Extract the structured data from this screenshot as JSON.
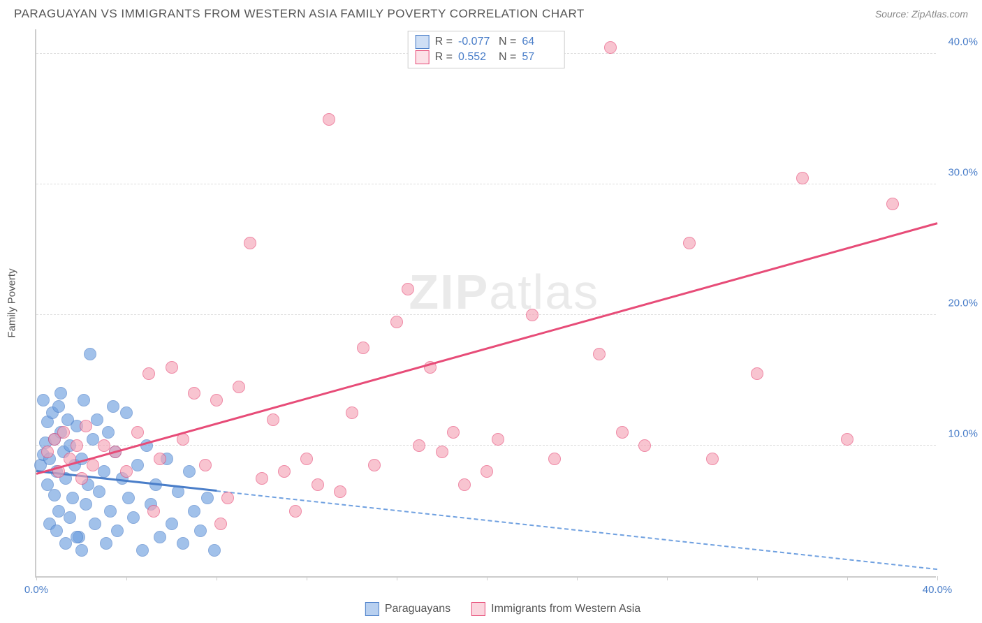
{
  "title": "PARAGUAYAN VS IMMIGRANTS FROM WESTERN ASIA FAMILY POVERTY CORRELATION CHART",
  "source": "Source: ZipAtlas.com",
  "watermark": {
    "bold": "ZIP",
    "light": "atlas"
  },
  "chart": {
    "type": "scatter",
    "y_label": "Family Poverty",
    "background_color": "#ffffff",
    "grid_color": "#dddddd",
    "axis_color": "#cccccc",
    "tick_label_color": "#4a7ec9",
    "label_color": "#555555",
    "title_fontsize": 17,
    "tick_fontsize": 15,
    "label_fontsize": 15,
    "xlim": [
      0,
      40
    ],
    "ylim": [
      0,
      42
    ],
    "y_ticks": [
      {
        "value": 10,
        "label": "10.0%"
      },
      {
        "value": 20,
        "label": "20.0%"
      },
      {
        "value": 30,
        "label": "30.0%"
      },
      {
        "value": 40,
        "label": "40.0%"
      }
    ],
    "x_ticks": [
      0,
      4,
      8,
      12,
      16,
      20,
      24,
      28,
      32,
      36,
      40
    ],
    "x_tick_labels": [
      {
        "value": 0,
        "label": "0.0%"
      },
      {
        "value": 40,
        "label": "40.0%"
      }
    ],
    "marker_radius": 9,
    "marker_stroke_width": 1.2,
    "marker_fill_opacity": 0.35,
    "line_width": 2.5,
    "series": [
      {
        "name": "Paraguayans",
        "color": "#6fa0e0",
        "stroke": "#4a7ec9",
        "r_value": "-0.077",
        "n_value": "64",
        "trend": {
          "x1": 0,
          "y1": 8.0,
          "x2": 8,
          "y2": 6.5,
          "solid": true
        },
        "trend_ext": {
          "x1": 8,
          "y1": 6.5,
          "x2": 40,
          "y2": 0.5,
          "dashed": true,
          "color": "#6fa0e0"
        },
        "points": [
          [
            0.2,
            8.5
          ],
          [
            0.3,
            9.3
          ],
          [
            0.4,
            10.2
          ],
          [
            0.5,
            11.8
          ],
          [
            0.5,
            7.0
          ],
          [
            0.6,
            9.0
          ],
          [
            0.7,
            12.5
          ],
          [
            0.8,
            6.2
          ],
          [
            0.8,
            10.5
          ],
          [
            0.9,
            8.0
          ],
          [
            1.0,
            13.0
          ],
          [
            1.0,
            5.0
          ],
          [
            1.1,
            11.0
          ],
          [
            1.2,
            9.5
          ],
          [
            1.3,
            7.5
          ],
          [
            1.4,
            12.0
          ],
          [
            1.5,
            4.5
          ],
          [
            1.5,
            10.0
          ],
          [
            1.6,
            6.0
          ],
          [
            1.7,
            8.5
          ],
          [
            1.8,
            11.5
          ],
          [
            1.9,
            3.0
          ],
          [
            2.0,
            9.0
          ],
          [
            2.1,
            13.5
          ],
          [
            2.2,
            5.5
          ],
          [
            2.3,
            7.0
          ],
          [
            2.5,
            10.5
          ],
          [
            2.6,
            4.0
          ],
          [
            2.7,
            12.0
          ],
          [
            2.8,
            6.5
          ],
          [
            3.0,
            8.0
          ],
          [
            3.1,
            2.5
          ],
          [
            3.2,
            11.0
          ],
          [
            3.3,
            5.0
          ],
          [
            3.5,
            9.5
          ],
          [
            3.6,
            3.5
          ],
          [
            3.8,
            7.5
          ],
          [
            4.0,
            12.5
          ],
          [
            4.1,
            6.0
          ],
          [
            4.3,
            4.5
          ],
          [
            4.5,
            8.5
          ],
          [
            4.7,
            2.0
          ],
          [
            4.9,
            10.0
          ],
          [
            5.1,
            5.5
          ],
          [
            5.3,
            7.0
          ],
          [
            5.5,
            3.0
          ],
          [
            5.8,
            9.0
          ],
          [
            6.0,
            4.0
          ],
          [
            6.3,
            6.5
          ],
          [
            6.5,
            2.5
          ],
          [
            6.8,
            8.0
          ],
          [
            7.0,
            5.0
          ],
          [
            7.3,
            3.5
          ],
          [
            7.6,
            6.0
          ],
          [
            7.9,
            2.0
          ],
          [
            2.4,
            17.0
          ],
          [
            3.4,
            13.0
          ],
          [
            0.3,
            13.5
          ],
          [
            1.1,
            14.0
          ],
          [
            0.6,
            4.0
          ],
          [
            1.3,
            2.5
          ],
          [
            1.8,
            3.0
          ],
          [
            2.0,
            2.0
          ],
          [
            0.9,
            3.5
          ]
        ]
      },
      {
        "name": "Immigrants from Western Asia",
        "color": "#f5a5b8",
        "stroke": "#e74c78",
        "r_value": "0.552",
        "n_value": "57",
        "trend": {
          "x1": 0,
          "y1": 7.8,
          "x2": 40,
          "y2": 27.0,
          "solid": true
        },
        "points": [
          [
            0.5,
            9.5
          ],
          [
            0.8,
            10.5
          ],
          [
            1.0,
            8.0
          ],
          [
            1.2,
            11.0
          ],
          [
            1.5,
            9.0
          ],
          [
            1.8,
            10.0
          ],
          [
            2.0,
            7.5
          ],
          [
            2.2,
            11.5
          ],
          [
            2.5,
            8.5
          ],
          [
            3.0,
            10.0
          ],
          [
            3.5,
            9.5
          ],
          [
            4.0,
            8.0
          ],
          [
            4.5,
            11.0
          ],
          [
            5.0,
            15.5
          ],
          [
            5.5,
            9.0
          ],
          [
            6.0,
            16.0
          ],
          [
            6.5,
            10.5
          ],
          [
            7.0,
            14.0
          ],
          [
            7.5,
            8.5
          ],
          [
            8.0,
            13.5
          ],
          [
            8.5,
            6.0
          ],
          [
            9.0,
            14.5
          ],
          [
            9.5,
            25.5
          ],
          [
            10.0,
            7.5
          ],
          [
            10.5,
            12.0
          ],
          [
            11.0,
            8.0
          ],
          [
            11.5,
            5.0
          ],
          [
            12.0,
            9.0
          ],
          [
            12.5,
            7.0
          ],
          [
            13.0,
            35.0
          ],
          [
            13.5,
            6.5
          ],
          [
            14.0,
            12.5
          ],
          [
            14.5,
            17.5
          ],
          [
            15.0,
            8.5
          ],
          [
            16.0,
            19.5
          ],
          [
            16.5,
            22.0
          ],
          [
            17.0,
            10.0
          ],
          [
            17.5,
            16.0
          ],
          [
            18.0,
            9.5
          ],
          [
            18.5,
            11.0
          ],
          [
            19.0,
            7.0
          ],
          [
            20.0,
            8.0
          ],
          [
            20.5,
            10.5
          ],
          [
            22.0,
            20.0
          ],
          [
            23.0,
            9.0
          ],
          [
            25.0,
            17.0
          ],
          [
            26.0,
            11.0
          ],
          [
            27.0,
            10.0
          ],
          [
            29.0,
            25.5
          ],
          [
            30.0,
            9.0
          ],
          [
            32.0,
            15.5
          ],
          [
            34.0,
            30.5
          ],
          [
            36.0,
            10.5
          ],
          [
            25.5,
            40.5
          ],
          [
            38.0,
            28.5
          ],
          [
            5.2,
            5.0
          ],
          [
            8.2,
            4.0
          ]
        ]
      }
    ],
    "bottom_legend": [
      {
        "label": "Paraguayans",
        "fill": "#b8d0f0",
        "stroke": "#4a7ec9"
      },
      {
        "label": "Immigrants from Western Asia",
        "fill": "#fbd5de",
        "stroke": "#e74c78"
      }
    ]
  }
}
